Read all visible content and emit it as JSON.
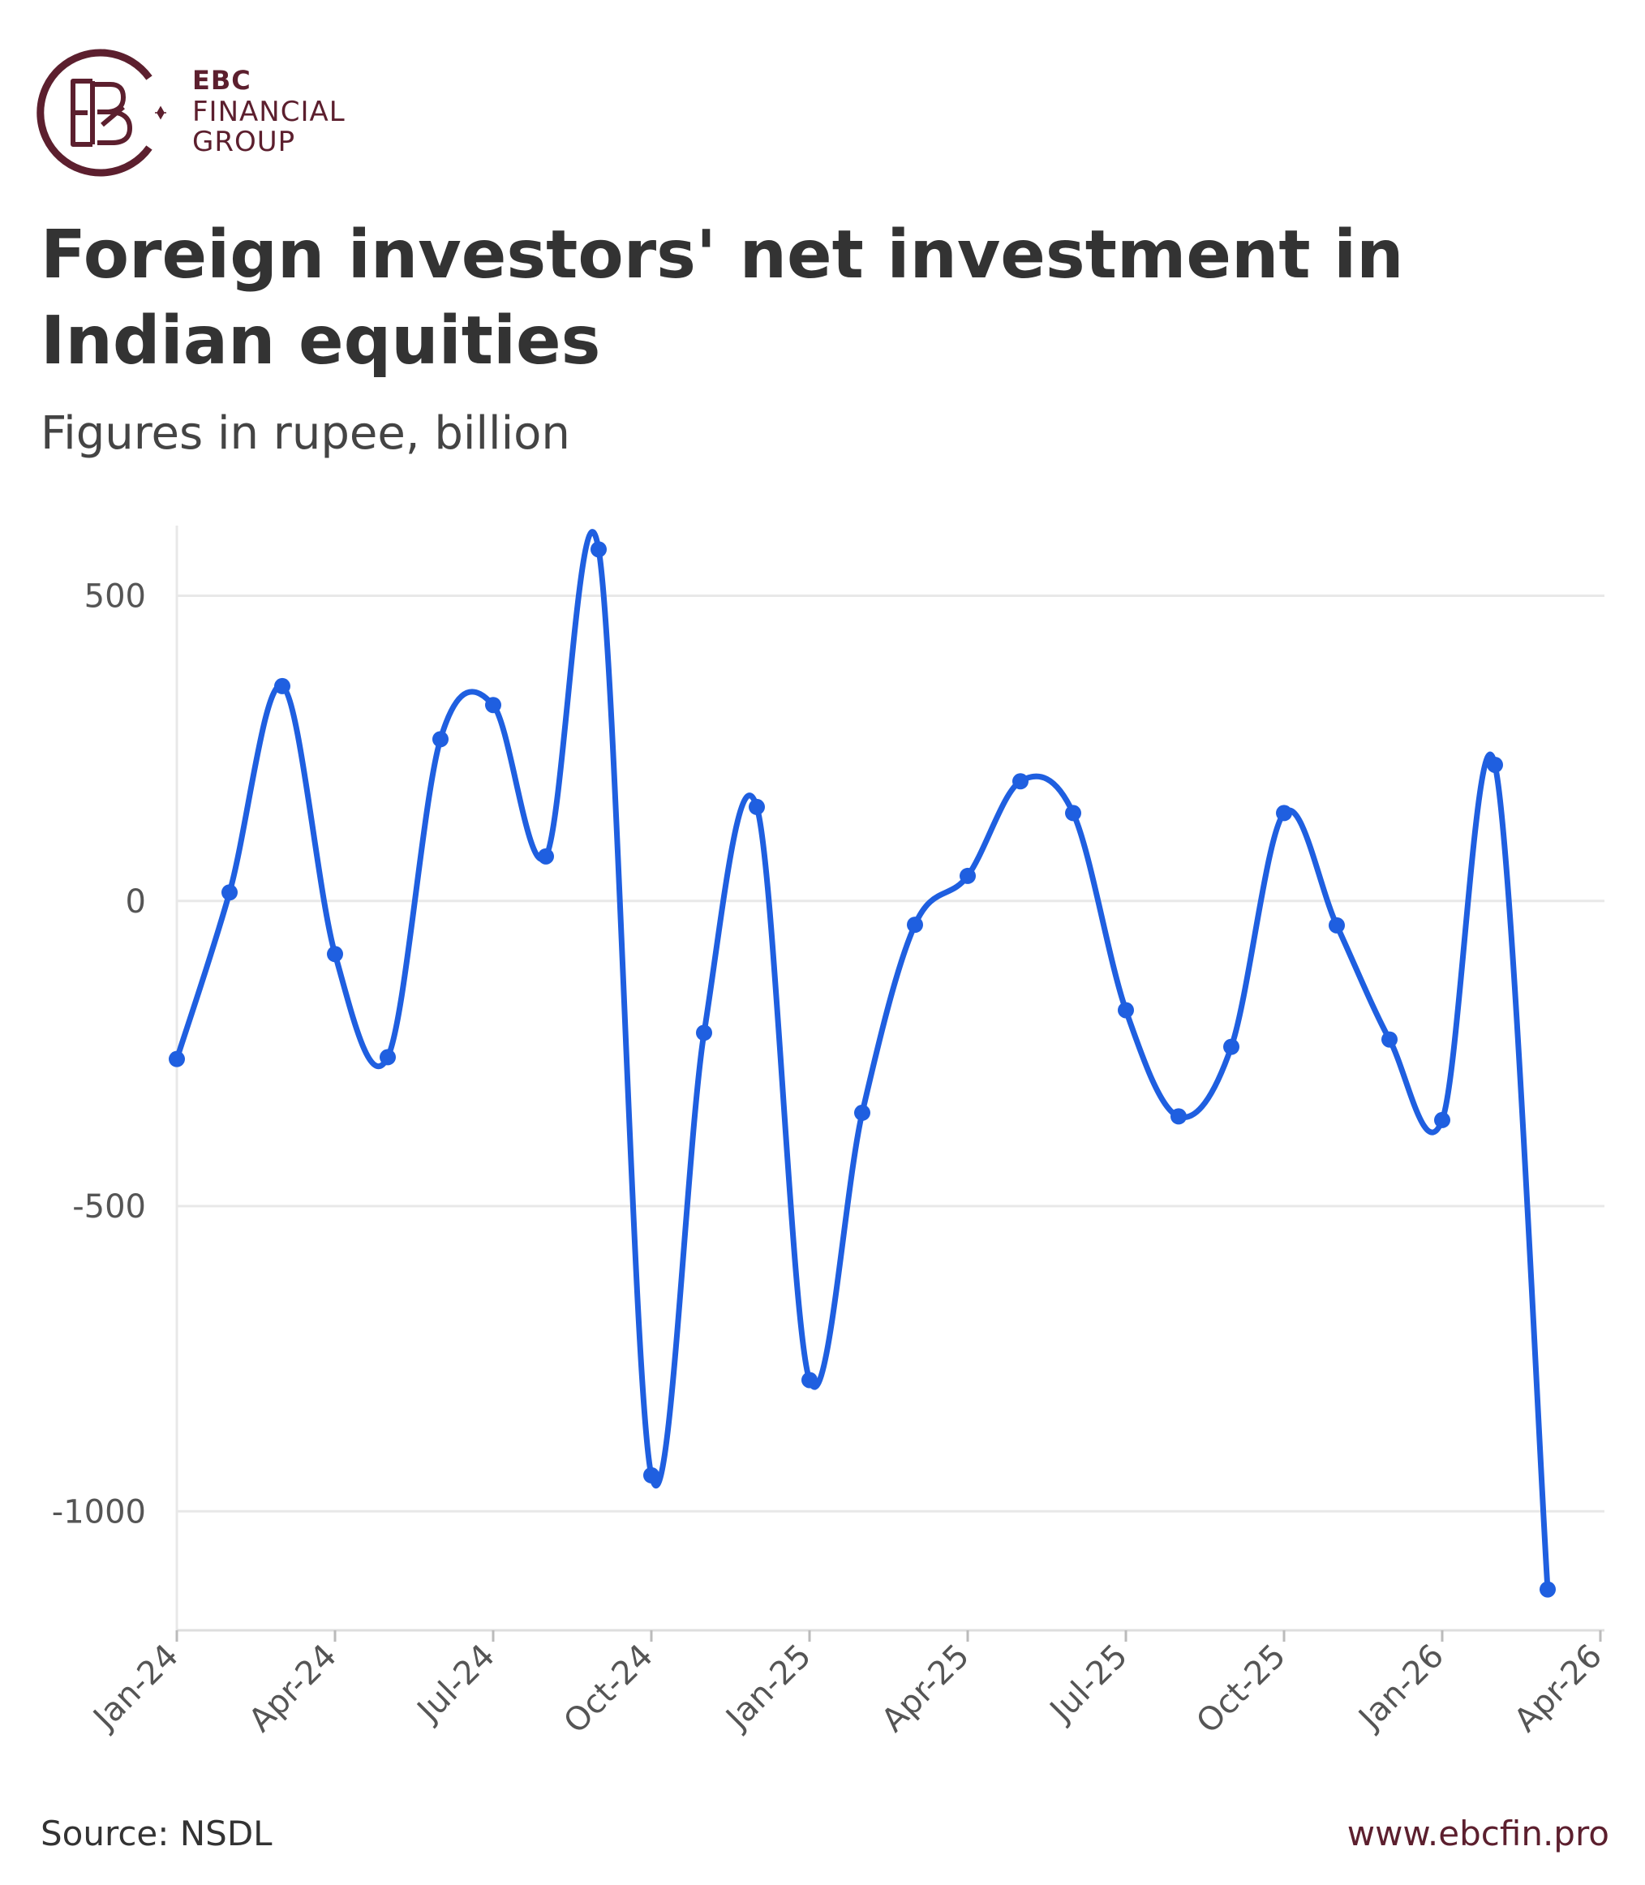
{
  "brand": {
    "line1": "EBC",
    "line2": "FINANCIAL",
    "line3": "GROUP",
    "logo_icon": "ebc-monogram-icon",
    "color": "#5c1f2e"
  },
  "title": "Foreign investors' net investment in Indian equities",
  "subtitle": "Figures in rupee, billion",
  "source": "Source: NSDL",
  "website": "www.ebcfin.pro",
  "chart_data": {
    "type": "line",
    "title": "Foreign investors' net investment in Indian equities",
    "subtitle": "Figures in rupee, billion",
    "xlabel": "",
    "ylabel": "",
    "x": [
      "2024-01",
      "2024-02",
      "2024-03",
      "2024-04",
      "2024-05",
      "2024-06",
      "2024-07",
      "2024-08",
      "2024-09",
      "2024-10",
      "2024-11",
      "2024-12",
      "2025-01",
      "2025-02",
      "2025-03",
      "2025-04",
      "2025-05",
      "2025-06",
      "2025-07",
      "2025-08",
      "2025-09",
      "2025-10",
      "2025-11",
      "2025-12",
      "2026-01",
      "2026-02",
      "2026-03"
    ],
    "series": [
      {
        "values": [
          -259,
          14,
          352,
          -87,
          -256,
          265,
          321,
          73,
          576,
          -941,
          -216,
          154,
          -785,
          -347,
          -39,
          41,
          196,
          144,
          -179,
          -353,
          -239,
          144,
          -40,
          -227,
          -359,
          223,
          -1128
        ]
      }
    ],
    "x_tick_labels": [
      "Jan-24",
      "Apr-24",
      "Jul-24",
      "Oct-24",
      "Jan-25",
      "Apr-25",
      "Jul-25",
      "Oct-25",
      "Jan-26",
      "Apr-26"
    ],
    "y_ticks": [
      500,
      0,
      -500,
      -1000
    ],
    "y_tick_labels": [
      "500",
      "0",
      "-500",
      "-1000"
    ],
    "ylim": [
      -1195,
      615
    ],
    "xlim": [
      "2024-01",
      "2026-04"
    ],
    "grid": "horizontal",
    "line_color": "#1f5fe0",
    "grid_color": "#e8e8e8",
    "smooth": true,
    "markers": true
  }
}
